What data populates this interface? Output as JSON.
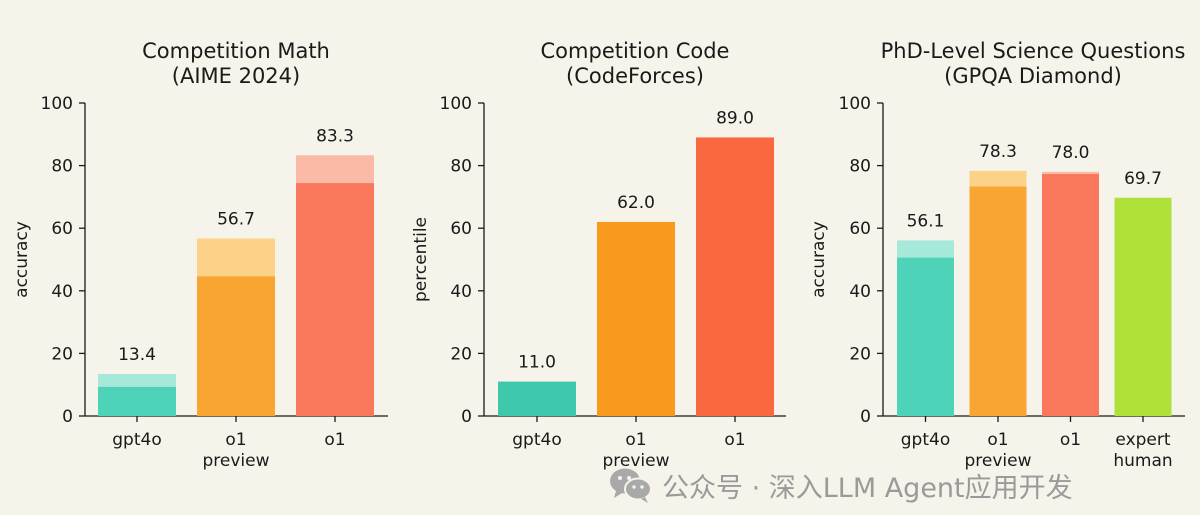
{
  "chart_data": [
    {
      "type": "bar",
      "title": "Competition Math",
      "subtitle": "(AIME 2024)",
      "ylabel": "accuracy",
      "ylim": [
        0,
        100
      ],
      "yticks": [
        0,
        20,
        40,
        60,
        80,
        100
      ],
      "categories": [
        {
          "lines": [
            "gpt4o"
          ]
        },
        {
          "lines": [
            "o1",
            "preview"
          ]
        },
        {
          "lines": [
            "o1"
          ]
        }
      ],
      "series": [
        {
          "values": [
            9.3,
            44.6,
            74.4
          ]
        },
        {
          "values": [
            13.4,
            56.7,
            83.3
          ]
        }
      ],
      "data_labels": [
        "13.4",
        "56.7",
        "83.3"
      ],
      "colors": [
        "#4fd3b8",
        "#f9a531",
        "#f9775a"
      ],
      "light_colors": [
        "#a6e8d9",
        "#fbd287",
        "#fbbaa6"
      ]
    },
    {
      "type": "bar",
      "title": "Competition Code",
      "subtitle": "(CodeForces)",
      "ylabel": "percentile",
      "ylim": [
        0,
        100
      ],
      "yticks": [
        0,
        20,
        40,
        60,
        80,
        100
      ],
      "categories": [
        {
          "lines": [
            "gpt4o"
          ]
        },
        {
          "lines": [
            "o1",
            "preview"
          ]
        },
        {
          "lines": [
            "o1"
          ]
        }
      ],
      "series": [
        {
          "values": [
            11.0,
            62.0,
            89.0
          ]
        }
      ],
      "data_labels": [
        "11.0",
        "62.0",
        "89.0"
      ],
      "colors": [
        "#3ec9ac",
        "#f99a1e",
        "#f9683f"
      ],
      "light_colors": []
    },
    {
      "type": "bar",
      "title": "PhD-Level Science Questions",
      "subtitle": "(GPQA Diamond)",
      "ylabel": "accuracy",
      "ylim": [
        0,
        100
      ],
      "yticks": [
        0,
        20,
        40,
        60,
        80,
        100
      ],
      "categories": [
        {
          "lines": [
            "gpt4o"
          ]
        },
        {
          "lines": [
            "o1",
            "preview"
          ]
        },
        {
          "lines": [
            "o1"
          ]
        },
        {
          "lines": [
            "expert",
            "human"
          ]
        }
      ],
      "series": [
        {
          "values": [
            50.6,
            73.3,
            77.3,
            69.7
          ]
        },
        {
          "values": [
            56.1,
            78.3,
            78.0,
            69.7
          ]
        }
      ],
      "data_labels": [
        "56.1",
        "78.3",
        "78.0",
        "69.7"
      ],
      "colors": [
        "#4fd3b8",
        "#f9a531",
        "#f9775a",
        "#b0e03a"
      ],
      "light_colors": [
        "#a6e8d9",
        "#fbd287",
        "#fbbaa6",
        "#b0e03a"
      ]
    }
  ],
  "watermark": {
    "icon": "wechat-icon",
    "text": "公众号 · 深入LLM Agent应用开发"
  }
}
